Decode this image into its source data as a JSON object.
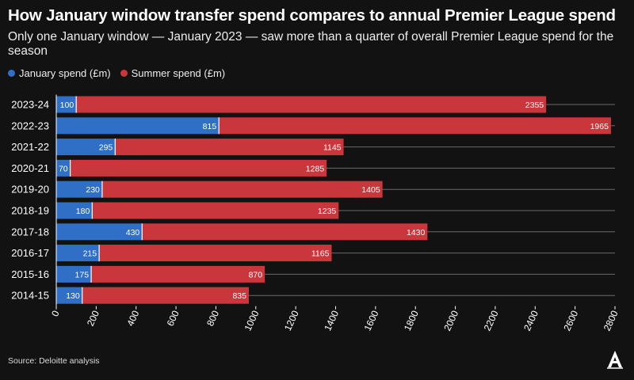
{
  "header": {
    "title": "How January window transfer spend compares to annual Premier League spend",
    "subtitle": "Only one January window — January 2023 — saw more than a quarter of overall Premier League spend for the season"
  },
  "legend": {
    "january_label": "January spend (£m)",
    "summer_label": "Summer spend (£m)"
  },
  "footer": {
    "source": "Source: Deloitte analysis",
    "logo_icon": "athletic-logo-icon"
  },
  "colors": {
    "january": "#2f6fc6",
    "summer": "#c9363b",
    "background": "#121212"
  },
  "chart_data": {
    "type": "bar",
    "orientation": "horizontal",
    "stacked": true,
    "title": "How January window transfer spend compares to annual Premier League spend",
    "xlabel": "",
    "ylabel": "",
    "xlim": [
      0,
      2800
    ],
    "x_ticks": [
      0,
      200,
      400,
      600,
      800,
      1000,
      1200,
      1400,
      1600,
      1800,
      2000,
      2200,
      2400,
      2600,
      2800
    ],
    "categories": [
      "2023-24",
      "2022-23",
      "2021-22",
      "2020-21",
      "2019-20",
      "2018-19",
      "2017-18",
      "2016-17",
      "2015-16",
      "2014-15"
    ],
    "series": [
      {
        "name": "January spend (£m)",
        "values": [
          100,
          815,
          295,
          70,
          230,
          180,
          430,
          215,
          175,
          130
        ]
      },
      {
        "name": "Summer spend (£m)",
        "values": [
          2355,
          1965,
          1145,
          1285,
          1405,
          1235,
          1430,
          1165,
          870,
          835
        ]
      }
    ],
    "legend_position": "top-left"
  }
}
